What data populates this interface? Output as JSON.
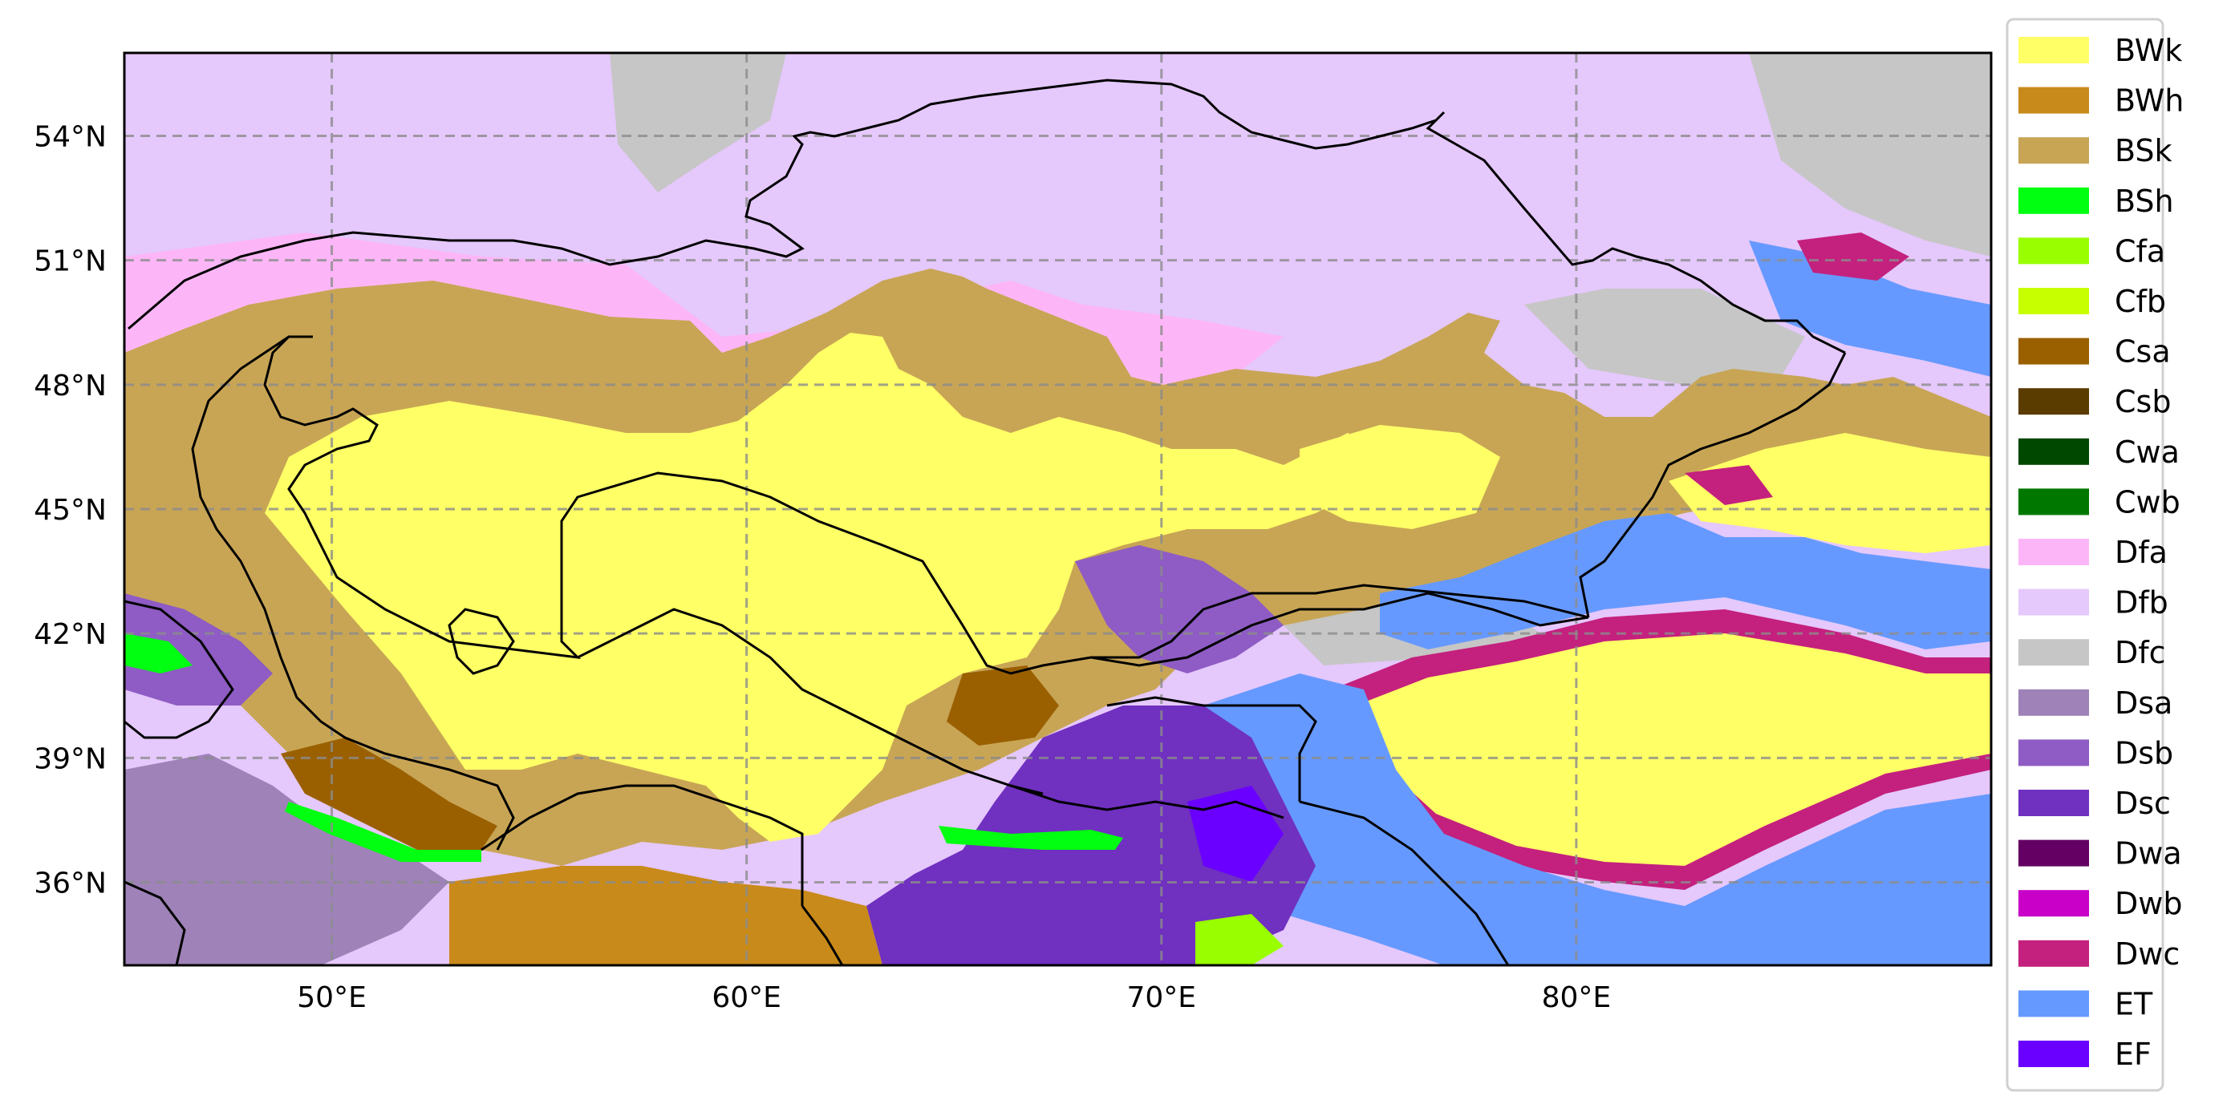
{
  "map": {
    "x_ticks": [
      {
        "label": "50°E",
        "lon": 50
      },
      {
        "label": "60°E",
        "lon": 60
      },
      {
        "label": "70°E",
        "lon": 70
      },
      {
        "label": "80°E",
        "lon": 80
      }
    ],
    "y_ticks": [
      {
        "label": "54°N",
        "lat": 54
      },
      {
        "label": "51°N",
        "lat": 51
      },
      {
        "label": "48°N",
        "lat": 48
      },
      {
        "label": "45°N",
        "lat": 45
      },
      {
        "label": "42°N",
        "lat": 42
      },
      {
        "label": "39°N",
        "lat": 39
      },
      {
        "label": "36°N",
        "lat": 36
      }
    ],
    "lon_range": [
      45,
      90
    ],
    "lat_range": [
      34,
      56
    ],
    "gridlines": true,
    "colors": {
      "desert": "#ffff66",
      "steppe": "#c8a555",
      "dfb": "#e5c8fc",
      "dfa": "#fcb6f7",
      "dfc": "#c6c6c6",
      "et": "#6699ff",
      "ef": "#6a00ff",
      "bwh": "#c88a1a",
      "csa": "#9a6000",
      "dsb": "#8e5cc4",
      "dsc": "#7030c0",
      "dsa": "#9e82b8",
      "dwc": "#c4207e",
      "bsh": "#00ff10",
      "cfa": "#99ff00"
    }
  },
  "legend": {
    "position": "right",
    "items": [
      {
        "label": "BWk",
        "color": "#ffff66"
      },
      {
        "label": "BWh",
        "color": "#c88a1a"
      },
      {
        "label": "BSk",
        "color": "#c8a555"
      },
      {
        "label": "BSh",
        "color": "#00ff10"
      },
      {
        "label": "Cfa",
        "color": "#99ff00"
      },
      {
        "label": "Cfb",
        "color": "#c8ff00"
      },
      {
        "label": "Csa",
        "color": "#9a6000"
      },
      {
        "label": "Csb",
        "color": "#5a3c00"
      },
      {
        "label": "Cwa",
        "color": "#004800"
      },
      {
        "label": "Cwb",
        "color": "#007800"
      },
      {
        "label": "Dfa",
        "color": "#fcb6f7"
      },
      {
        "label": "Dfb",
        "color": "#e5c8fc"
      },
      {
        "label": "Dfc",
        "color": "#c6c6c6"
      },
      {
        "label": "Dsa",
        "color": "#9e82b8"
      },
      {
        "label": "Dsb",
        "color": "#8e5cc4"
      },
      {
        "label": "Dsc",
        "color": "#7030c0"
      },
      {
        "label": "Dwa",
        "color": "#640064"
      },
      {
        "label": "Dwb",
        "color": "#c800c8"
      },
      {
        "label": "Dwc",
        "color": "#c4207e"
      },
      {
        "label": "ET",
        "color": "#6699ff"
      },
      {
        "label": "EF",
        "color": "#6a00ff"
      }
    ]
  }
}
